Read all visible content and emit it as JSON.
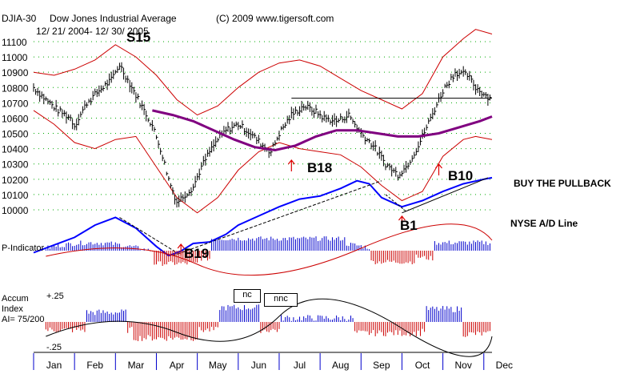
{
  "header": {
    "symbol": "DJIA-30",
    "name": "Dow Jones Industrial Average",
    "copyright": "(C) 2009 www.tigersoft.com",
    "date_range": "12/ 21/ 2004- 12/ 30/ 2005"
  },
  "panels": {
    "pindicator_label": "P-Indicator",
    "accum_label_1": "Accum",
    "accum_label_2": "Index",
    "accum_value": "AI= 75/200",
    "accum_ticks": [
      "+.25",
      "-.25"
    ]
  },
  "boxes": {
    "nc": "nc",
    "nnc": "nnc"
  },
  "annotations": {
    "buy_pullback": "BUY THE PULLBACK",
    "nyse_ad": "NYSE A/D Line"
  },
  "signals": [
    {
      "label": "S15",
      "date": "Mar",
      "type": "sell"
    },
    {
      "label": "B19",
      "date": "Apr",
      "type": "buy"
    },
    {
      "label": "B18",
      "date": "Jul",
      "type": "buy"
    },
    {
      "label": "B1",
      "date": "Oct",
      "type": "buy"
    },
    {
      "label": "B10",
      "date": "Nov",
      "type": "buy"
    }
  ],
  "colors": {
    "price_bars": "#000000",
    "bands": "#cc0000",
    "moving_average": "#800080",
    "ad_line": "#0000ff",
    "positive_hist": "#0000cc",
    "negative_hist": "#cc0000",
    "signal_text": "#000000",
    "arrows": "#dd0000",
    "grid_dots": "#00aa00"
  },
  "chart_data": {
    "type": "line",
    "y_ticks": [
      11100,
      11000,
      10900,
      10800,
      10700,
      10600,
      10500,
      10400,
      10300,
      10200,
      10100,
      10000
    ],
    "months": [
      "Jan",
      "Feb",
      "Mar",
      "Apr",
      "May",
      "Jun",
      "Jul",
      "Aug",
      "Sep",
      "Oct",
      "Nov",
      "Dec"
    ],
    "price_series": {
      "name": "DJIA",
      "points": [
        [
          0,
          10800
        ],
        [
          0.3,
          10720
        ],
        [
          0.6,
          10650
        ],
        [
          0.9,
          10600
        ],
        [
          1.0,
          10550
        ],
        [
          1.3,
          10700
        ],
        [
          1.6,
          10780
        ],
        [
          1.9,
          10850
        ],
        [
          2.1,
          10950
        ],
        [
          2.3,
          10850
        ],
        [
          2.6,
          10700
        ],
        [
          2.9,
          10550
        ],
        [
          3.1,
          10400
        ],
        [
          3.3,
          10200
        ],
        [
          3.5,
          10050
        ],
        [
          3.7,
          10100
        ],
        [
          3.9,
          10150
        ],
        [
          4.1,
          10280
        ],
        [
          4.3,
          10380
        ],
        [
          4.5,
          10460
        ],
        [
          4.7,
          10520
        ],
        [
          5.0,
          10560
        ],
        [
          5.3,
          10500
        ],
        [
          5.6,
          10420
        ],
        [
          5.8,
          10380
        ],
        [
          6.0,
          10500
        ],
        [
          6.3,
          10620
        ],
        [
          6.6,
          10680
        ],
        [
          6.9,
          10640
        ],
        [
          7.1,
          10600
        ],
        [
          7.4,
          10580
        ],
        [
          7.7,
          10620
        ],
        [
          8.0,
          10500
        ],
        [
          8.3,
          10420
        ],
        [
          8.6,
          10300
        ],
        [
          8.9,
          10230
        ],
        [
          9.1,
          10280
        ],
        [
          9.4,
          10420
        ],
        [
          9.7,
          10600
        ],
        [
          10.0,
          10780
        ],
        [
          10.3,
          10900
        ],
        [
          10.6,
          10880
        ],
        [
          10.8,
          10800
        ],
        [
          11.0,
          10760
        ],
        [
          11.2,
          10720
        ]
      ]
    },
    "moving_average": {
      "name": "MA",
      "points": [
        [
          2.9,
          10650
        ],
        [
          3.4,
          10620
        ],
        [
          3.9,
          10580
        ],
        [
          4.4,
          10520
        ],
        [
          4.9,
          10460
        ],
        [
          5.4,
          10410
        ],
        [
          5.9,
          10390
        ],
        [
          6.4,
          10420
        ],
        [
          6.9,
          10480
        ],
        [
          7.4,
          10520
        ],
        [
          7.9,
          10520
        ],
        [
          8.4,
          10500
        ],
        [
          8.9,
          10480
        ],
        [
          9.4,
          10480
        ],
        [
          9.9,
          10500
        ],
        [
          10.4,
          10540
        ],
        [
          10.9,
          10580
        ],
        [
          11.2,
          10610
        ]
      ]
    },
    "upper_band": [
      [
        0,
        10900
      ],
      [
        0.5,
        10880
      ],
      [
        1.0,
        10920
      ],
      [
        1.5,
        10980
      ],
      [
        2.0,
        11080
      ],
      [
        2.5,
        11000
      ],
      [
        3.0,
        10880
      ],
      [
        3.5,
        10720
      ],
      [
        4.0,
        10620
      ],
      [
        4.5,
        10680
      ],
      [
        5.0,
        10800
      ],
      [
        5.5,
        10900
      ],
      [
        6.0,
        10960
      ],
      [
        6.5,
        10980
      ],
      [
        7.0,
        10940
      ],
      [
        7.5,
        10860
      ],
      [
        8.0,
        10780
      ],
      [
        8.5,
        10720
      ],
      [
        9.0,
        10660
      ],
      [
        9.5,
        10760
      ],
      [
        10.0,
        11000
      ],
      [
        10.5,
        11120
      ],
      [
        10.8,
        11180
      ],
      [
        11.2,
        11150
      ]
    ],
    "lower_band": [
      [
        0,
        10650
      ],
      [
        0.5,
        10560
      ],
      [
        1.0,
        10440
      ],
      [
        1.5,
        10400
      ],
      [
        2.0,
        10460
      ],
      [
        2.5,
        10480
      ],
      [
        3.0,
        10280
      ],
      [
        3.5,
        10080
      ],
      [
        4.0,
        9980
      ],
      [
        4.5,
        10080
      ],
      [
        5.0,
        10260
      ],
      [
        5.5,
        10380
      ],
      [
        6.0,
        10440
      ],
      [
        6.5,
        10400
      ],
      [
        7.0,
        10380
      ],
      [
        7.5,
        10360
      ],
      [
        8.0,
        10280
      ],
      [
        8.5,
        10160
      ],
      [
        9.0,
        10060
      ],
      [
        9.5,
        10120
      ],
      [
        10.0,
        10350
      ],
      [
        10.5,
        10460
      ],
      [
        10.8,
        10480
      ],
      [
        11.2,
        10460
      ]
    ],
    "ad_line": [
      [
        0,
        9720
      ],
      [
        0.5,
        9770
      ],
      [
        1.0,
        9820
      ],
      [
        1.5,
        9900
      ],
      [
        2.0,
        9950
      ],
      [
        2.5,
        9880
      ],
      [
        3.0,
        9760
      ],
      [
        3.3,
        9700
      ],
      [
        3.6,
        9730
      ],
      [
        3.9,
        9780
      ],
      [
        4.3,
        9790
      ],
      [
        4.7,
        9840
      ],
      [
        5.0,
        9900
      ],
      [
        5.5,
        9960
      ],
      [
        6.0,
        10020
      ],
      [
        6.5,
        10070
      ],
      [
        7.0,
        10090
      ],
      [
        7.5,
        10140
      ],
      [
        7.9,
        10190
      ],
      [
        8.2,
        10170
      ],
      [
        8.5,
        10080
      ],
      [
        9.0,
        10020
      ],
      [
        9.5,
        10060
      ],
      [
        10.0,
        10120
      ],
      [
        10.5,
        10170
      ],
      [
        11.0,
        10200
      ],
      [
        11.2,
        10210
      ]
    ],
    "annotations": [
      "S15",
      "B19",
      "B18",
      "B1",
      "B10",
      "BUY THE PULLBACK",
      "NYSE A/D Line"
    ]
  }
}
